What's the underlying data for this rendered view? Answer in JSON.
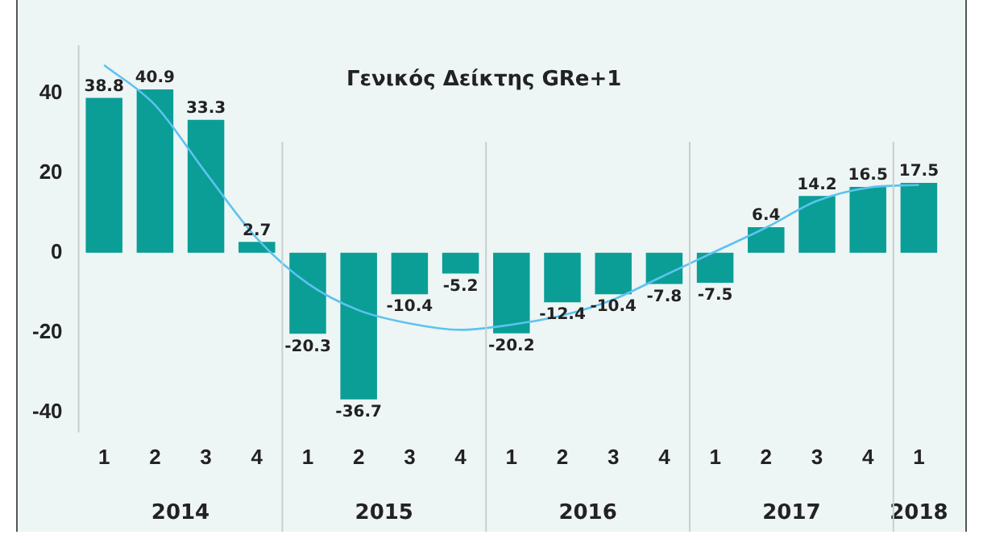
{
  "chart_data": {
    "type": "bar",
    "title": "Γενικός Δείκτης GRe+1",
    "categories": [
      "1",
      "2",
      "3",
      "4",
      "1",
      "2",
      "3",
      "4",
      "1",
      "2",
      "3",
      "4",
      "1",
      "2",
      "3",
      "4",
      "1"
    ],
    "series": [
      {
        "color": "#0a9e96",
        "values": [
          38.8,
          40.9,
          33.3,
          2.7,
          -20.3,
          -36.7,
          -10.4,
          -5.2,
          -20.2,
          -12.4,
          -10.4,
          -7.8,
          -7.5,
          6.4,
          14.2,
          16.5,
          17.5
        ],
        "value_labels": [
          "38.8",
          "40.9",
          "33.3",
          "2.7",
          "-20.3",
          "-36.7",
          "-10.4",
          "-5.2",
          "-20.2",
          "-12.4",
          "-10.4",
          "-7.8",
          "-7.5",
          "6.4",
          "14.2",
          "16.5",
          "17.5"
        ]
      },
      {
        "type": "line",
        "color": "#5cc3ee",
        "values": [
          47,
          37,
          20,
          3.6,
          -7.7,
          -14.4,
          -17.7,
          -19.3,
          -18,
          -15.7,
          -11.7,
          -5.7,
          0.3,
          6.3,
          13,
          16.3,
          17
        ]
      }
    ],
    "ylim": [
      -45,
      52
    ],
    "yticks": [
      -40,
      -20,
      0,
      20,
      40
    ],
    "grid": false,
    "legend": false,
    "marker": "none",
    "annotations": [
      "2014",
      "2015",
      "2016",
      "2017",
      "2018"
    ]
  }
}
